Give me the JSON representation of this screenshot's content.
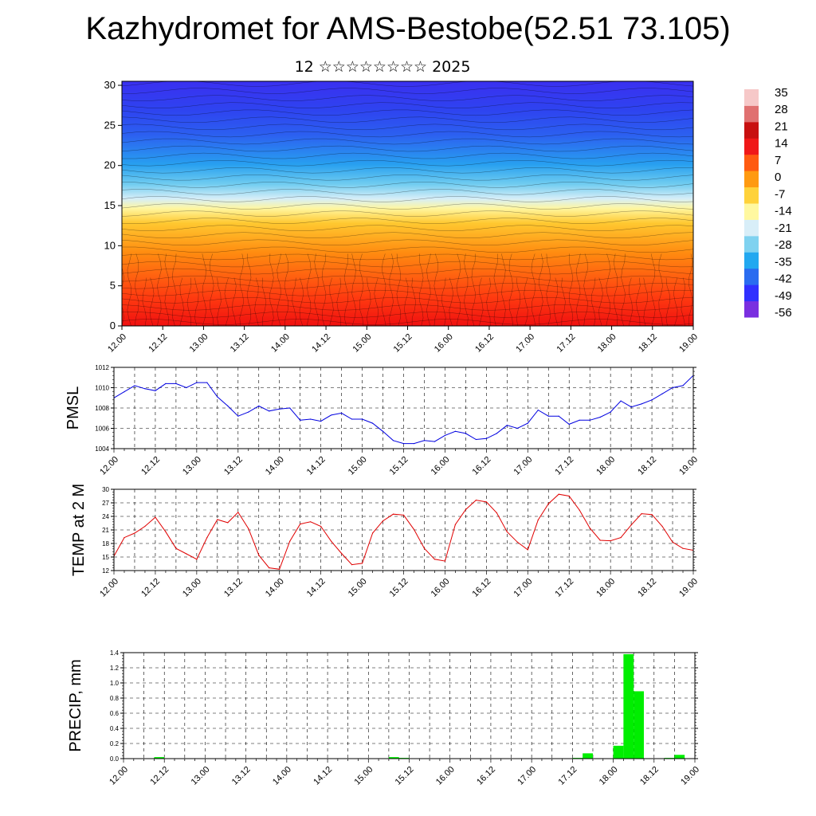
{
  "header": {
    "title": "Kazhydromet for AMS-Bestobe(52.51 73.105)",
    "subtitle": "12 ☆☆☆☆☆☆☆☆ 2025"
  },
  "colors": {
    "pmsl_line": "#0000e0",
    "temp_line": "#e00000",
    "precip_bar": "#00ee00",
    "colorbar": [
      "#7a2fe0",
      "#3030ff",
      "#2a6cf0",
      "#22a8f0",
      "#7fd2f0",
      "#d8eef8",
      "#fff8a0",
      "#ffd23a",
      "#ff9a10",
      "#ff5a10",
      "#f01818",
      "#c81010",
      "#e07070",
      "#f6c8c8"
    ]
  },
  "chart_data": [
    {
      "type": "heatmap",
      "panel": "cross-section",
      "xlabel": "",
      "ylabel": "",
      "x_ticks": [
        "12.00",
        "12.12",
        "13.00",
        "13.12",
        "14.00",
        "14.12",
        "15.00",
        "15.12",
        "16.00",
        "16.12",
        "17.00",
        "17.12",
        "18.00",
        "18.12",
        "19.00"
      ],
      "y_ticks": [
        "0",
        "5",
        "10",
        "15",
        "20",
        "25",
        "30"
      ],
      "ylim": [
        0,
        30.5
      ],
      "colorbar_labels": [
        "35",
        "28",
        "21",
        "14",
        "7",
        "0",
        "-7",
        "-14",
        "-21",
        "-28",
        "-35",
        "-42",
        "-49",
        "-56"
      ],
      "has_wind_barbs": true
    },
    {
      "type": "line",
      "panel": "pmsl",
      "ylabel": "PMSL",
      "x_ticks": [
        "12.00",
        "12.12",
        "13.00",
        "13.12",
        "14.00",
        "14.12",
        "15.00",
        "15.12",
        "16.00",
        "16.12",
        "17.00",
        "17.12",
        "18.00",
        "18.12",
        "19.00"
      ],
      "y_ticks": [
        "1004",
        "1006",
        "1008",
        "1010",
        "1012"
      ],
      "ylim": [
        1004,
        1012
      ],
      "x": [
        0,
        3,
        6,
        9,
        12,
        15,
        18,
        21,
        24,
        27,
        30,
        33,
        36,
        39,
        42,
        45,
        48,
        51,
        54,
        57,
        60,
        63,
        66,
        69,
        72,
        75,
        78,
        81,
        84,
        87,
        90,
        93,
        96,
        99,
        102,
        105,
        108,
        111,
        114,
        117,
        120,
        123,
        126,
        129,
        132,
        135,
        138,
        141,
        144,
        147,
        150,
        153,
        156,
        159,
        162,
        165,
        168
      ],
      "values": [
        1009.0,
        1009.6,
        1010.2,
        1009.9,
        1009.7,
        1010.4,
        1010.4,
        1010.0,
        1010.5,
        1010.5,
        1009.1,
        1008.2,
        1007.2,
        1007.6,
        1008.2,
        1007.7,
        1007.9,
        1008.0,
        1006.8,
        1006.9,
        1006.7,
        1007.3,
        1007.5,
        1006.9,
        1006.9,
        1006.5,
        1005.7,
        1004.8,
        1004.5,
        1004.5,
        1004.8,
        1004.7,
        1005.3,
        1005.7,
        1005.5,
        1004.9,
        1005.0,
        1005.5,
        1006.3,
        1006.0,
        1006.5,
        1007.8,
        1007.2,
        1007.2,
        1006.4,
        1006.8,
        1006.8,
        1007.1,
        1007.6,
        1008.7,
        1008.1,
        1008.4,
        1008.8,
        1009.4,
        1010.0,
        1010.2,
        1011.2
      ]
    },
    {
      "type": "line",
      "panel": "temperature",
      "ylabel": "TEMP at 2 M",
      "x_ticks": [
        "12.00",
        "12.12",
        "13.00",
        "13.12",
        "14.00",
        "14.12",
        "15.00",
        "15.12",
        "16.00",
        "16.12",
        "17.00",
        "17.12",
        "18.00",
        "18.12",
        "19.00"
      ],
      "y_ticks": [
        "12",
        "15",
        "18",
        "21",
        "24",
        "27",
        "30"
      ],
      "ylim": [
        12,
        30
      ],
      "x": [
        0,
        3,
        6,
        9,
        12,
        15,
        18,
        21,
        24,
        27,
        30,
        33,
        36,
        39,
        42,
        45,
        48,
        51,
        54,
        57,
        60,
        63,
        66,
        69,
        72,
        75,
        78,
        81,
        84,
        87,
        90,
        93,
        96,
        99,
        102,
        105,
        108,
        111,
        114,
        117,
        120,
        123,
        126,
        129,
        132,
        135,
        138,
        141,
        144,
        147,
        150,
        153,
        156,
        159,
        162,
        165,
        168
      ],
      "values": [
        15.2,
        19.3,
        20.3,
        21.8,
        23.8,
        20.6,
        16.9,
        15.7,
        14.5,
        19.3,
        23.3,
        22.6,
        24.9,
        21.3,
        15.4,
        12.6,
        12.3,
        18.5,
        22.3,
        22.8,
        21.8,
        18.5,
        15.8,
        13.3,
        13.6,
        20.3,
        23.0,
        24.5,
        24.3,
        21.1,
        16.9,
        14.5,
        14.1,
        22.2,
        25.5,
        27.6,
        27.2,
        24.8,
        20.6,
        18.3,
        16.6,
        23.2,
        26.8,
        28.9,
        28.5,
        25.4,
        21.4,
        18.7,
        18.6,
        19.3,
        22.1,
        24.6,
        24.4,
        21.8,
        18.3,
        16.9,
        16.5
      ]
    },
    {
      "type": "bar",
      "panel": "precipitation",
      "ylabel": "PRECIP, mm",
      "x_ticks": [
        "12.00",
        "12.12",
        "13.00",
        "13.12",
        "14.00",
        "14.12",
        "15.00",
        "15.12",
        "16.00",
        "16.12",
        "17.00",
        "17.12",
        "18.00",
        "18.12",
        "19.00"
      ],
      "y_ticks": [
        "0.0",
        "0.2",
        "0.4",
        "0.6",
        "0.8",
        "1.0",
        "1.2",
        "1.4"
      ],
      "ylim": [
        0,
        1.4
      ],
      "x": [
        9,
        78,
        81,
        132,
        135,
        144,
        147,
        150,
        159,
        162
      ],
      "values": [
        0.02,
        0.02,
        0.01,
        0.01,
        0.07,
        0.17,
        1.38,
        0.89,
        0.01,
        0.05
      ]
    }
  ]
}
